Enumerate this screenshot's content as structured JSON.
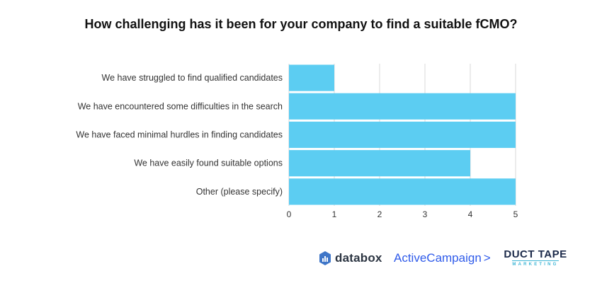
{
  "chart_data": {
    "type": "bar",
    "orientation": "horizontal",
    "title": "How challenging has it been for your company to find a suitable fCMO?",
    "xlabel": "",
    "ylabel": "",
    "categories": [
      "We have struggled to find qualified candidates",
      "We have encountered some difficulties in the search",
      "We have faced minimal hurdles in finding candidates",
      "We have easily found suitable options",
      "Other (please specify)"
    ],
    "values": [
      1,
      5,
      5,
      4,
      5
    ],
    "xlim": [
      0,
      5
    ],
    "xticks": [
      "0",
      "1",
      "2",
      "3",
      "4",
      "5"
    ],
    "grid": true,
    "bar_color": "#5ccdf2",
    "grid_color": "#d9d9d9"
  },
  "logos": {
    "databox": "databox",
    "activecampaign": "ActiveCampaign",
    "activecampaign_mark": ">",
    "ducttape_top": "DUCT TAPE",
    "ducttape_bottom": "MARKETING"
  },
  "colors": {
    "databox": "#2b3441",
    "databox_icon": "#3f76c8",
    "activecampaign": "#2f5bea",
    "ducttape_dark": "#1c2a4a",
    "ducttape_accent": "#3fb6d6"
  }
}
